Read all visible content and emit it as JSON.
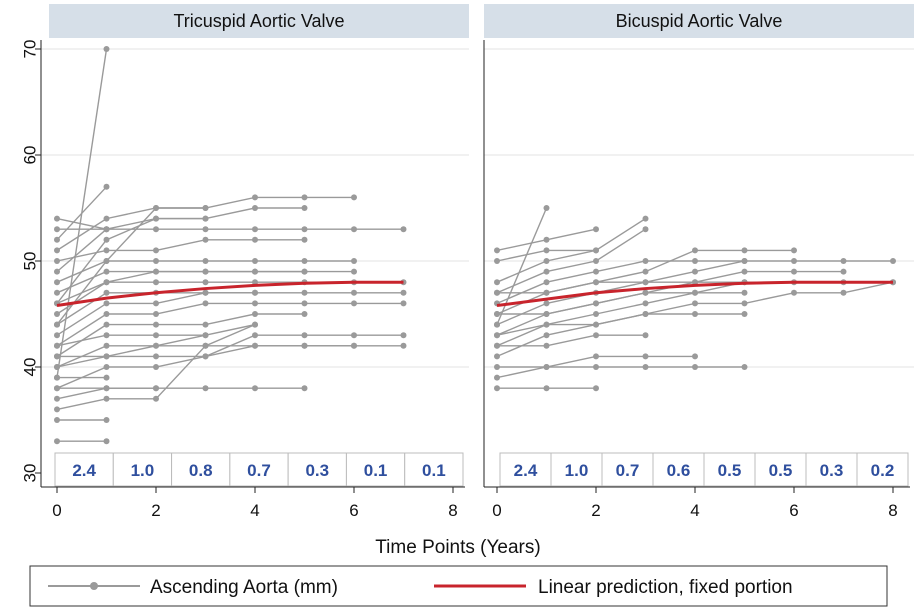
{
  "chart_data": {
    "type": "line",
    "xlabel": "Time Points (Years)",
    "xlim": [
      0,
      8
    ],
    "ylim": [
      30,
      72
    ],
    "xticks": [
      0,
      2,
      4,
      6,
      8
    ],
    "yticks": [
      30,
      40,
      50,
      60,
      70
    ],
    "grid": true,
    "legend_placement": "bottom",
    "legend": {
      "observed": "Ascending Aorta (mm)",
      "prediction": "Linear prediction, fixed portion"
    },
    "colors": {
      "observed": "#9a9a9a",
      "prediction": "#c8242c",
      "panel_header": "#d6dfe8",
      "rate_text": "#2f4f9e"
    },
    "panels": [
      {
        "title": "Tricuspid Aortic Valve",
        "interval_values": [
          "2.4",
          "1.0",
          "0.8",
          "0.7",
          "0.3",
          "0.1",
          "0.1"
        ],
        "prediction": {
          "x": [
            0,
            1,
            2,
            3,
            4,
            5,
            6,
            7
          ],
          "y": [
            45.8,
            46.5,
            47.0,
            47.4,
            47.7,
            47.9,
            48.0,
            48.0
          ]
        },
        "trajectories": [
          [
            [
              0,
              39
            ],
            [
              1,
              70
            ]
          ],
          [
            [
              0,
              52
            ],
            [
              1,
              57
            ]
          ],
          [
            [
              0,
              54
            ],
            [
              1,
              53
            ]
          ],
          [
            [
              0,
              33
            ],
            [
              1,
              33
            ]
          ],
          [
            [
              0,
              35
            ],
            [
              1,
              35
            ]
          ],
          [
            [
              0,
              37
            ],
            [
              1,
              38
            ],
            [
              2,
              38
            ]
          ],
          [
            [
              0,
              36
            ],
            [
              1,
              37
            ],
            [
              2,
              37
            ],
            [
              3,
              42
            ],
            [
              4,
              44
            ]
          ],
          [
            [
              0,
              40
            ],
            [
              1,
              41
            ],
            [
              2,
              42
            ],
            [
              3,
              43
            ],
            [
              4,
              44
            ]
          ],
          [
            [
              0,
              44
            ],
            [
              1,
              50
            ],
            [
              2,
              55
            ],
            [
              3,
              55
            ],
            [
              4,
              56
            ],
            [
              5,
              56
            ],
            [
              6,
              56
            ]
          ],
          [
            [
              0,
              46
            ],
            [
              1,
              52
            ],
            [
              2,
              54
            ],
            [
              3,
              54
            ],
            [
              4,
              55
            ],
            [
              5,
              55
            ]
          ],
          [
            [
              0,
              53
            ],
            [
              1,
              53
            ],
            [
              2,
              53
            ],
            [
              3,
              53
            ],
            [
              4,
              53
            ],
            [
              5,
              53
            ],
            [
              6,
              53
            ],
            [
              7,
              53
            ]
          ],
          [
            [
              0,
              50
            ],
            [
              1,
              51
            ],
            [
              2,
              51
            ],
            [
              3,
              52
            ],
            [
              4,
              52
            ],
            [
              5,
              52
            ]
          ],
          [
            [
              0,
              48
            ],
            [
              1,
              50
            ],
            [
              2,
              50
            ],
            [
              3,
              50
            ],
            [
              4,
              50
            ],
            [
              5,
              50
            ],
            [
              6,
              50
            ]
          ],
          [
            [
              0,
              47
            ],
            [
              1,
              49
            ],
            [
              2,
              49
            ],
            [
              3,
              49
            ],
            [
              4,
              49
            ],
            [
              5,
              49
            ],
            [
              6,
              49
            ]
          ],
          [
            [
              0,
              45
            ],
            [
              1,
              48
            ],
            [
              2,
              48
            ],
            [
              3,
              48
            ],
            [
              4,
              48
            ],
            [
              5,
              48
            ],
            [
              6,
              48
            ],
            [
              7,
              48
            ]
          ],
          [
            [
              0,
              43
            ],
            [
              1,
              46
            ],
            [
              2,
              46
            ],
            [
              3,
              47
            ],
            [
              4,
              47
            ],
            [
              5,
              47
            ],
            [
              6,
              47
            ],
            [
              7,
              47
            ]
          ],
          [
            [
              0,
              42
            ],
            [
              1,
              45
            ],
            [
              2,
              45
            ],
            [
              3,
              46
            ],
            [
              4,
              46
            ],
            [
              5,
              46
            ],
            [
              6,
              46
            ],
            [
              7,
              46
            ]
          ],
          [
            [
              0,
              41
            ],
            [
              1,
              44
            ],
            [
              2,
              44
            ],
            [
              3,
              44
            ],
            [
              4,
              45
            ],
            [
              5,
              45
            ]
          ],
          [
            [
              0,
              40
            ],
            [
              1,
              42
            ],
            [
              2,
              42
            ],
            [
              3,
              42
            ],
            [
              4,
              42
            ],
            [
              5,
              42
            ],
            [
              6,
              42
            ],
            [
              7,
              42
            ]
          ],
          [
            [
              0,
              41
            ],
            [
              1,
              41
            ],
            [
              2,
              41
            ],
            [
              3,
              41
            ],
            [
              4,
              43
            ],
            [
              5,
              43
            ],
            [
              6,
              43
            ],
            [
              7,
              43
            ]
          ],
          [
            [
              0,
              38
            ],
            [
              1,
              40
            ],
            [
              2,
              40
            ],
            [
              3,
              41
            ],
            [
              4,
              42
            ],
            [
              5,
              42
            ],
            [
              6,
              42
            ]
          ],
          [
            [
              0,
              38
            ],
            [
              1,
              38
            ],
            [
              2,
              38
            ],
            [
              3,
              38
            ],
            [
              4,
              38
            ],
            [
              5,
              38
            ]
          ],
          [
            [
              0,
              51
            ],
            [
              1,
              54
            ],
            [
              2,
              55
            ],
            [
              3,
              55
            ]
          ],
          [
            [
              0,
              49
            ],
            [
              1,
              53
            ],
            [
              2,
              54
            ],
            [
              3,
              54
            ]
          ],
          [
            [
              0,
              44
            ],
            [
              1,
              47
            ],
            [
              2,
              47
            ],
            [
              3,
              47
            ],
            [
              4,
              47
            ]
          ],
          [
            [
              0,
              46
            ],
            [
              1,
              48
            ],
            [
              2,
              49
            ],
            [
              3,
              49
            ],
            [
              4,
              49
            ],
            [
              5,
              49
            ]
          ],
          [
            [
              0,
              42
            ],
            [
              1,
              43
            ],
            [
              2,
              43
            ],
            [
              3,
              43
            ]
          ],
          [
            [
              0,
              39
            ],
            [
              1,
              39
            ]
          ]
        ]
      },
      {
        "title": "Bicuspid Aortic Valve",
        "interval_values": [
          "2.4",
          "1.0",
          "0.7",
          "0.6",
          "0.5",
          "0.5",
          "0.3",
          "0.2"
        ],
        "prediction": {
          "x": [
            0,
            1,
            2,
            3,
            4,
            5,
            6,
            7,
            8
          ],
          "y": [
            45.8,
            46.4,
            47.0,
            47.4,
            47.7,
            47.9,
            48.0,
            48.0,
            48.0
          ]
        },
        "trajectories": [
          [
            [
              0,
              44
            ],
            [
              1,
              55
            ]
          ],
          [
            [
              0,
              51
            ],
            [
              1,
              52
            ],
            [
              2,
              53
            ]
          ],
          [
            [
              0,
              50
            ],
            [
              1,
              51
            ],
            [
              2,
              51
            ]
          ],
          [
            [
              0,
              48
            ],
            [
              1,
              50
            ],
            [
              2,
              51
            ],
            [
              3,
              54
            ]
          ],
          [
            [
              0,
              47
            ],
            [
              1,
              49
            ],
            [
              2,
              50
            ],
            [
              3,
              53
            ]
          ],
          [
            [
              0,
              46
            ],
            [
              1,
              48
            ],
            [
              2,
              49
            ],
            [
              3,
              50
            ],
            [
              4,
              50
            ],
            [
              5,
              50
            ]
          ],
          [
            [
              0,
              45
            ],
            [
              1,
              47
            ],
            [
              2,
              48
            ],
            [
              3,
              49
            ],
            [
              4,
              51
            ],
            [
              5,
              51
            ],
            [
              6,
              51
            ]
          ],
          [
            [
              0,
              44
            ],
            [
              1,
              46
            ],
            [
              2,
              47
            ],
            [
              3,
              48
            ],
            [
              4,
              49
            ],
            [
              5,
              50
            ],
            [
              6,
              50
            ],
            [
              7,
              50
            ],
            [
              8,
              50
            ]
          ],
          [
            [
              0,
              43
            ],
            [
              1,
              45
            ],
            [
              2,
              46
            ],
            [
              3,
              47
            ],
            [
              4,
              48
            ],
            [
              5,
              49
            ],
            [
              6,
              49
            ],
            [
              7,
              49
            ]
          ],
          [
            [
              0,
              42
            ],
            [
              1,
              44
            ],
            [
              2,
              45
            ],
            [
              3,
              46
            ],
            [
              4,
              47
            ],
            [
              5,
              48
            ],
            [
              6,
              48
            ],
            [
              7,
              48
            ],
            [
              8,
              48
            ]
          ],
          [
            [
              0,
              41
            ],
            [
              1,
              43
            ],
            [
              2,
              44
            ],
            [
              3,
              45
            ],
            [
              4,
              46
            ],
            [
              5,
              46
            ],
            [
              6,
              47
            ],
            [
              7,
              47
            ],
            [
              8,
              48
            ]
          ],
          [
            [
              0,
              40
            ],
            [
              1,
              40
            ],
            [
              2,
              41
            ],
            [
              3,
              41
            ],
            [
              4,
              41
            ]
          ],
          [
            [
              0,
              38
            ],
            [
              1,
              38
            ],
            [
              2,
              38
            ]
          ],
          [
            [
              0,
              39
            ],
            [
              1,
              40
            ],
            [
              2,
              40
            ],
            [
              3,
              40
            ],
            [
              4,
              40
            ],
            [
              5,
              40
            ]
          ],
          [
            [
              0,
              47
            ],
            [
              1,
              47
            ],
            [
              2,
              48
            ],
            [
              3,
              48
            ],
            [
              4,
              48
            ],
            [
              5,
              48
            ]
          ],
          [
            [
              0,
              45
            ],
            [
              1,
              45
            ],
            [
              2,
              46
            ],
            [
              3,
              47
            ],
            [
              4,
              47
            ],
            [
              5,
              47
            ]
          ],
          [
            [
              0,
              43
            ],
            [
              1,
              44
            ],
            [
              2,
              44
            ],
            [
              3,
              45
            ],
            [
              4,
              45
            ],
            [
              5,
              45
            ]
          ],
          [
            [
              0,
              42
            ],
            [
              1,
              42
            ],
            [
              2,
              43
            ],
            [
              3,
              43
            ]
          ]
        ]
      }
    ]
  }
}
